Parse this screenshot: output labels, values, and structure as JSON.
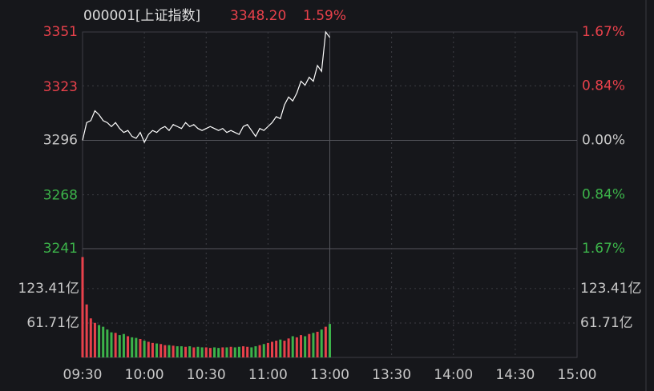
{
  "chart_data": {
    "type": "intraday",
    "title": "000001[上证指数]",
    "last_price": "3348.20",
    "change_pct": "1.59%",
    "xticks": [
      "09:30",
      "10:00",
      "10:30",
      "11:00",
      "13:00",
      "13:30",
      "14:00",
      "14:30",
      "15:00"
    ],
    "ylim": [
      3241,
      3351
    ],
    "yticks": [
      3351,
      3323,
      3296,
      3268,
      3241
    ],
    "y2lim": [
      -1.67,
      1.67
    ],
    "y2ticks": [
      {
        "value": 1.67,
        "label": "1.67%"
      },
      {
        "value": 0.84,
        "label": "0.84%"
      },
      {
        "value": 0,
        "label": "0.00%"
      },
      {
        "value": -0.84,
        "label": "0.84%"
      },
      {
        "value": -1.67,
        "label": "1.67%"
      }
    ],
    "vlim": [
      0,
      195
    ],
    "vticks": [
      {
        "value": 123.41,
        "label": "123.41亿"
      },
      {
        "value": 61.71,
        "label": "61.71亿"
      }
    ],
    "up_color": "#e8414b",
    "down_color": "#3cb34a",
    "grid": true,
    "series": [
      {
        "name": "price",
        "color": "#ffffff",
        "values": [
          3296,
          3305,
          3306,
          3311,
          3309,
          3306,
          3305,
          3303,
          3305,
          3302,
          3300,
          3301,
          3298,
          3297,
          3300,
          3295,
          3299,
          3301,
          3300,
          3302,
          3303,
          3301,
          3304,
          3303,
          3302,
          3305,
          3303,
          3304,
          3302,
          3301,
          3302,
          3303,
          3302,
          3301,
          3302,
          3300,
          3301,
          3300,
          3299,
          3303,
          3304,
          3301,
          3298,
          3302,
          3301,
          3303,
          3305,
          3308,
          3307,
          3314,
          3318,
          3316,
          3320,
          3326,
          3324,
          3328,
          3326,
          3334,
          3331,
          3351,
          3348.2,
          null,
          null,
          null,
          null,
          null,
          null,
          null,
          null,
          null,
          null,
          null,
          null,
          null,
          null,
          null,
          null,
          null,
          null,
          null,
          null,
          null,
          null,
          null,
          null,
          null,
          null,
          null,
          null,
          null,
          null,
          null,
          null,
          null,
          null,
          null,
          null,
          null,
          null,
          null,
          null,
          null,
          null,
          null,
          null,
          null,
          null,
          null,
          null,
          null,
          null,
          null,
          null,
          null,
          null,
          null,
          null,
          null,
          null,
          null,
          null
        ]
      },
      {
        "name": "volume",
        "values": [
          180,
          95,
          70,
          62,
          58,
          55,
          50,
          45,
          44,
          40,
          42,
          38,
          36,
          35,
          33,
          30,
          28,
          26,
          25,
          24,
          22,
          22,
          21,
          20,
          20,
          19,
          20,
          18,
          19,
          18,
          18,
          17,
          18,
          17,
          18,
          18,
          19,
          18,
          19,
          20,
          19,
          18,
          20,
          22,
          24,
          26,
          28,
          30,
          32,
          30,
          34,
          38,
          36,
          40,
          38,
          42,
          44,
          46,
          50,
          55,
          60,
          null,
          null,
          null,
          null,
          null,
          null,
          null,
          null,
          null,
          null,
          null,
          null,
          null,
          null,
          null,
          null,
          null,
          null,
          null,
          null,
          null,
          null,
          null,
          null,
          null,
          null,
          null,
          null,
          null,
          null,
          null,
          null,
          null,
          null,
          null,
          null,
          null,
          null,
          null,
          null,
          null,
          null,
          null,
          null,
          null,
          null,
          null,
          null,
          null,
          null,
          null,
          null,
          null,
          null,
          null,
          null,
          null,
          null,
          null,
          null
        ]
      }
    ]
  }
}
